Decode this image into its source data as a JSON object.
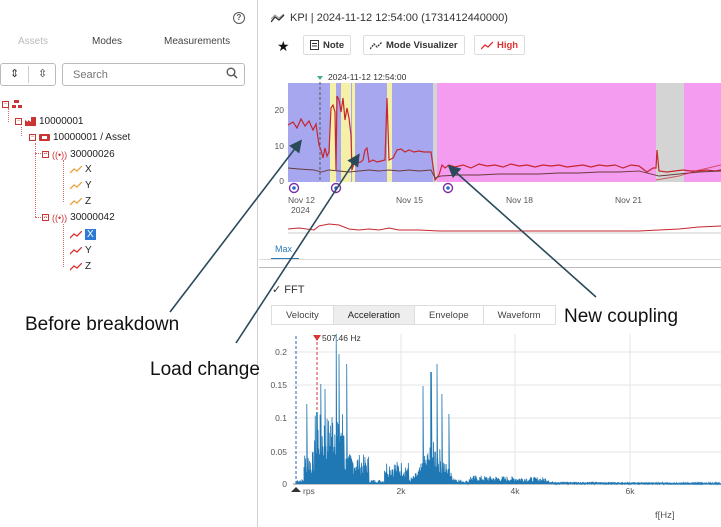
{
  "left_panel": {
    "help_icon": "?",
    "tabs": [
      "Assets",
      "Modes",
      "Measurements"
    ],
    "search_placeholder": "Search",
    "tree": {
      "root_id": "10000001",
      "asset_label": "10000001 / Asset",
      "sensors": [
        {
          "id": "30000026",
          "axes": [
            "X",
            "Y",
            "Z"
          ]
        },
        {
          "id": "30000042",
          "axes": [
            "X",
            "Y",
            "Z"
          ]
        }
      ]
    }
  },
  "kpi_panel": {
    "title": "KPI | 2024-11-12 12:54:00 (1731412440000)",
    "buttons": {
      "note": "Note",
      "mode_visualizer": "Mode Visualizer",
      "high": "High"
    },
    "cursor_label": "2024-11-12 12:54:00",
    "y_ticks": [
      "20",
      "10",
      "0"
    ],
    "x_ticks": [
      "Nov 12",
      "Nov 15",
      "Nov 18",
      "Nov 21"
    ],
    "x_year": "2024",
    "max_tab": "Max"
  },
  "fft_panel": {
    "title": "FFT",
    "tabs": [
      "Velocity",
      "Acceleration",
      "Envelope",
      "Waveform"
    ],
    "active_tab": "Acceleration",
    "marker_label": "507.46 Hz",
    "y_ticks": [
      "0.2",
      "0.15",
      "0.1",
      "0.05",
      "0"
    ],
    "x_ticks": [
      "rps",
      "2k",
      "4k",
      "6k"
    ],
    "x_axis_label": "f[Hz]"
  },
  "annotations": {
    "before_breakdown": "Before breakdown",
    "load_change": "Load change",
    "new_coupling": "New coupling"
  },
  "colors": {
    "mode_blue": "#a7a7f0",
    "mode_pink": "#f49cf0",
    "mode_yellow": "#f5f0a8",
    "mode_gray": "#d4d4d4",
    "kpi_red": "#c6262e",
    "fft_blue": "#1f77b4",
    "link_blue": "#2a7ab8"
  }
}
